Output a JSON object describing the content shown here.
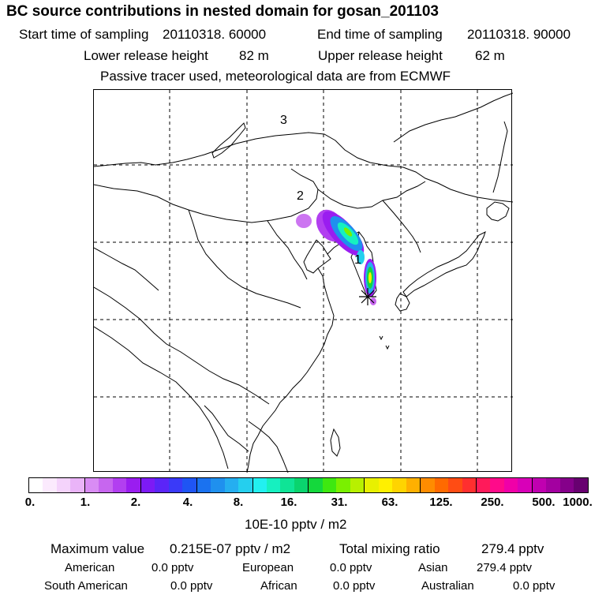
{
  "title": "BC  source contributions in nested domain for gosan_201103",
  "header": {
    "start_label": "Start time of sampling",
    "start_value": "20110318. 60000",
    "end_label": "End time of sampling",
    "end_value": "20110318. 90000",
    "lower_label": "Lower release height",
    "lower_value": "82 m",
    "upper_label": "Upper release height",
    "upper_value": "62 m",
    "note": "Passive tracer used, meteorological data are from ECMWF"
  },
  "map": {
    "labels": [
      "3",
      "2",
      "1"
    ],
    "receptor": "gosan"
  },
  "colorbar": {
    "ticks": [
      "0.",
      "1.",
      "2.",
      "4.",
      "8.",
      "16.",
      "31.",
      "63.",
      "125.",
      "250.",
      "500.",
      "1000."
    ],
    "unit": "10E-10 pptv / m2",
    "colors": [
      "#ffffff",
      "#fbeafd",
      "#f4d3fb",
      "#eab4f8",
      "#d98cf4",
      "#c766ef",
      "#b23ff0",
      "#9a1df0",
      "#7d1af5",
      "#5b25f8",
      "#3a3af8",
      "#1f55f4",
      "#1a72f0",
      "#1f90ee",
      "#25aef0",
      "#25cfee",
      "#22f0f0",
      "#16f0c0",
      "#0fe496",
      "#0ad46e",
      "#14d83c",
      "#3ee810",
      "#7af000",
      "#b8f000",
      "#e8f000",
      "#fff000",
      "#ffd400",
      "#ffb000",
      "#ff8c00",
      "#ff6a00",
      "#ff4c14",
      "#ff2f2f",
      "#ff1a5a",
      "#ff0a8a",
      "#f000a8",
      "#d800b8",
      "#c000b0",
      "#a300a0",
      "#85008a",
      "#680070"
    ]
  },
  "summary": {
    "max_label": "Maximum value",
    "max_value": "0.215E-07 pptv / m2",
    "total_label": "Total mixing ratio",
    "total_value": "279.4 pptv",
    "regions": [
      {
        "name": "American",
        "value": "0.0 pptv"
      },
      {
        "name": "European",
        "value": "0.0 pptv"
      },
      {
        "name": "Asian",
        "value": "279.4 pptv"
      },
      {
        "name": "South American",
        "value": "0.0 pptv"
      },
      {
        "name": "African",
        "value": "0.0 pptv"
      },
      {
        "name": "Australian",
        "value": "0.0 pptv"
      }
    ]
  }
}
